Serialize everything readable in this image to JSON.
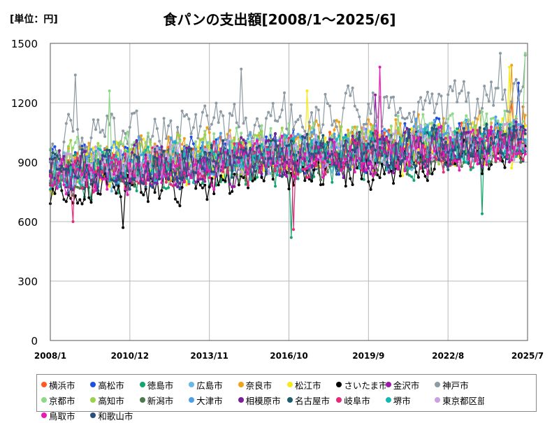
{
  "unit_label": "[単位：円]",
  "title": "食パンの支出額[2008/1～2025/6]",
  "chart_data": {
    "type": "line",
    "title": "食パンの支出額[2008/1～2025/6]",
    "unit": "[単位：円]",
    "xlabel": "",
    "ylabel": "",
    "x_start": "2008/1",
    "x_end": "2025/6",
    "x_tick_labels": [
      "2008/1",
      "2010/12",
      "2013/11",
      "2016/10",
      "2019/9",
      "2022/8",
      "2025/7"
    ],
    "y_ticks": [
      0,
      300,
      600,
      900,
      1200,
      1500
    ],
    "ylim": [
      0,
      1500
    ],
    "grid": true,
    "legend_position": "bottom",
    "marker": "circle",
    "series": [
      {
        "name": "横浜市",
        "color": "#ff5a1f",
        "start": 870,
        "trend": 150,
        "spread": 110,
        "peaks": [
          [
            2024.9,
            1200
          ],
          [
            2025.3,
            1180
          ]
        ]
      },
      {
        "name": "高松市",
        "color": "#1f4fe0",
        "start": 860,
        "trend": 170,
        "spread": 120,
        "peaks": [
          [
            2025.2,
            1300
          ]
        ]
      },
      {
        "name": "徳島市",
        "color": "#13a56b",
        "start": 800,
        "trend": 180,
        "spread": 120,
        "peaks": [
          [
            2016.8,
            520
          ],
          [
            2023.8,
            640
          ]
        ]
      },
      {
        "name": "広島市",
        "color": "#66b8e8",
        "start": 860,
        "trend": 160,
        "spread": 110,
        "peaks": []
      },
      {
        "name": "奈良市",
        "color": "#f0a11c",
        "start": 900,
        "trend": 170,
        "spread": 110,
        "peaks": [
          [
            2024.9,
            1390
          ]
        ]
      },
      {
        "name": "松江市",
        "color": "#f7ea1a",
        "start": 860,
        "trend": 150,
        "spread": 120,
        "peaks": [
          [
            2017.4,
            1260
          ],
          [
            2024.8,
            1380
          ]
        ]
      },
      {
        "name": "さいたま市",
        "color": "#000000",
        "start": 740,
        "trend": 200,
        "spread": 100,
        "peaks": [
          [
            2010.7,
            570
          ]
        ]
      },
      {
        "name": "金沢市",
        "color": "#9a1aa8",
        "start": 840,
        "trend": 160,
        "spread": 110,
        "peaks": [
          [
            2019.9,
            1240
          ]
        ]
      },
      {
        "name": "神戸市",
        "color": "#8c9aa3",
        "start": 1020,
        "trend": 190,
        "spread": 130,
        "peaks": [
          [
            2008.9,
            1340
          ],
          [
            2015.0,
            1370
          ],
          [
            2016.6,
            1250
          ],
          [
            2024.5,
            1450
          ],
          [
            2025.4,
            1440
          ]
        ]
      },
      {
        "name": "京都市",
        "color": "#8ed88a",
        "start": 900,
        "trend": 170,
        "spread": 120,
        "peaks": [
          [
            2010.2,
            1260
          ],
          [
            2025.4,
            1450
          ]
        ]
      },
      {
        "name": "高知市",
        "color": "#9cd24a",
        "start": 880,
        "trend": 150,
        "spread": 110,
        "peaks": []
      },
      {
        "name": "新潟市",
        "color": "#4b7a4e",
        "start": 820,
        "trend": 160,
        "spread": 100,
        "peaks": []
      },
      {
        "name": "大津市",
        "color": "#4aa0e8",
        "start": 880,
        "trend": 160,
        "spread": 110,
        "peaks": []
      },
      {
        "name": "相模原市",
        "color": "#7a1f9a",
        "start": 850,
        "trend": 150,
        "spread": 110,
        "peaks": []
      },
      {
        "name": "名古屋市",
        "color": "#1c5d70",
        "start": 840,
        "trend": 170,
        "spread": 100,
        "peaks": []
      },
      {
        "name": "岐阜市",
        "color": "#e62a7a",
        "start": 830,
        "trend": 170,
        "spread": 110,
        "peaks": [
          [
            2008.8,
            600
          ],
          [
            2016.9,
            560
          ]
        ]
      },
      {
        "name": "堺市",
        "color": "#14b8b0",
        "start": 850,
        "trend": 160,
        "spread": 110,
        "peaks": []
      },
      {
        "name": "東京都区部",
        "color": "#caa0e0",
        "start": 860,
        "trend": 160,
        "spread": 100,
        "peaks": []
      },
      {
        "name": "鳥取市",
        "color": "#e81ab4",
        "start": 830,
        "trend": 160,
        "spread": 110,
        "peaks": [
          [
            2020.1,
            1380
          ]
        ]
      },
      {
        "name": "和歌山市",
        "color": "#28507e",
        "start": 840,
        "trend": 170,
        "spread": 110,
        "peaks": []
      }
    ]
  }
}
